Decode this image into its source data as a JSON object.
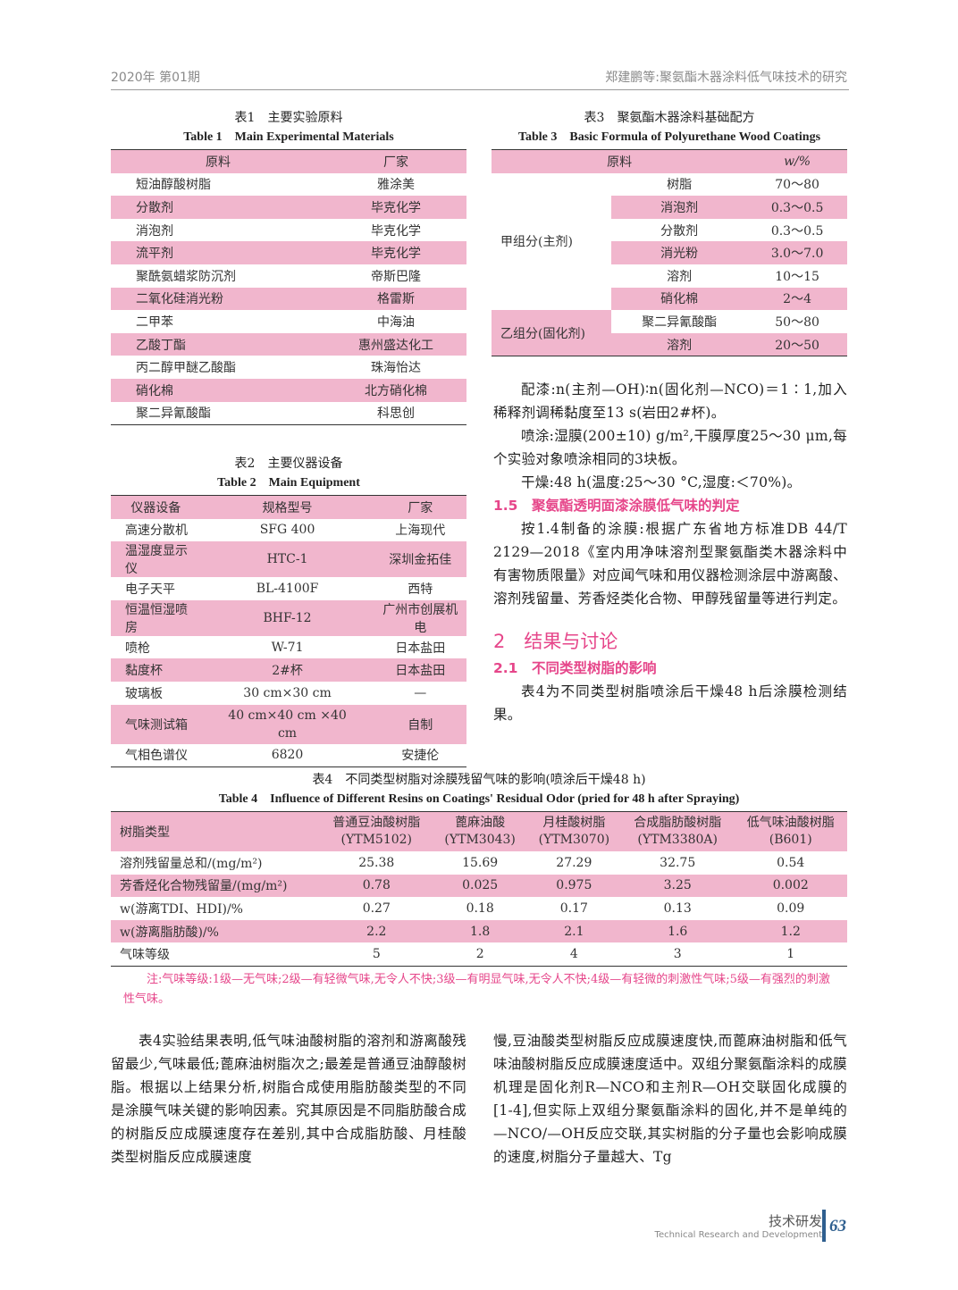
{
  "header": {
    "issue": "2020年 第01期",
    "running_title": "郑建鹏等:聚氨酯木器涂料低气味技术的研究"
  },
  "table1": {
    "caption_cn": "表1　主要实验原料",
    "caption_en": "Table 1　Main Experimental Materials",
    "columns": [
      "原料",
      "厂家"
    ],
    "rows": [
      [
        "短油醇酸树脂",
        "雅涂美"
      ],
      [
        "分散剂",
        "毕克化学"
      ],
      [
        "消泡剂",
        "毕克化学"
      ],
      [
        "流平剂",
        "毕克化学"
      ],
      [
        "聚酰氨蜡浆防沉剂",
        "帝斯巴隆"
      ],
      [
        "二氧化硅消光粉",
        "格雷斯"
      ],
      [
        "二甲苯",
        "中海油"
      ],
      [
        "乙酸丁酯",
        "惠州盛达化工"
      ],
      [
        "丙二醇甲醚乙酸酯",
        "珠海怡达"
      ],
      [
        "硝化棉",
        "北方硝化棉"
      ],
      [
        "聚二异氰酸酯",
        "科思创"
      ]
    ]
  },
  "table2": {
    "caption_cn": "表2　主要仪器设备",
    "caption_en": "Table 2　Main Equipment",
    "columns": [
      "仪器设备",
      "规格型号",
      "厂家"
    ],
    "rows": [
      [
        "高速分散机",
        "SFG 400",
        "上海现代"
      ],
      [
        "温湿度显示仪",
        "HTC-1",
        "深圳金拓佳"
      ],
      [
        "电子天平",
        "BL-4100F",
        "西特"
      ],
      [
        "恒温恒湿喷房",
        "BHF-12",
        "广州市创展机电"
      ],
      [
        "喷枪",
        "W-71",
        "日本盐田"
      ],
      [
        "黏度杯",
        "2#杯",
        "日本盐田"
      ],
      [
        "玻璃板",
        "30 cm×30 cm",
        "—"
      ],
      [
        "气味测试箱",
        "40 cm×40 cm ×40 cm",
        "自制"
      ],
      [
        "气相色谱仪",
        "6820",
        "安捷伦"
      ]
    ]
  },
  "table3": {
    "caption_cn": "表3　聚氨酯木器涂料基础配方",
    "caption_en": "Table 3　Basic Formula of Polyurethane Wood Coatings",
    "columns": [
      "原料",
      "w/%"
    ],
    "groups": [
      {
        "name": "甲组分(主剂)",
        "rows": [
          [
            "树脂",
            "70～80"
          ],
          [
            "消泡剂",
            "0.3～0.5"
          ],
          [
            "分散剂",
            "0.3～0.5"
          ],
          [
            "消光粉",
            "3.0～7.0"
          ],
          [
            "溶剂",
            "10～15"
          ],
          [
            "硝化棉",
            "2～4"
          ]
        ]
      },
      {
        "name": "乙组分(固化剂)",
        "rows": [
          [
            "聚二异氰酸酯",
            "50～80"
          ],
          [
            "溶剂",
            "20～50"
          ]
        ]
      }
    ]
  },
  "right_text": {
    "p1": "配漆:n(主剂—OH)∶n(固化剂—NCO)＝1∶1,加入稀释剂调稀黏度至13 s(岩田2#杯)。",
    "p2": "喷涂:湿膜(200±10) g/m²,干膜厚度25～30 μm,每个实验对象喷涂相同的3块板。",
    "p3": "干燥:48 h(温度:25～30 °C,湿度:＜70%)。",
    "h15": "1.5　聚氨酯透明面漆涂膜低气味的判定",
    "p4": "按1.4制备的涂膜:根据广东省地方标准DB 44/T 2129—2018《室内用净味溶剂型聚氨酯类木器涂料中有害物质限量》对应闻气味和用仪器检测涂层中游离酸、溶剂残留量、芳香烃类化合物、甲醇残留量等进行判定。",
    "h2": "2　结果与讨论",
    "h21": "2.1　不同类型树脂的影响",
    "p5": "表4为不同类型树脂喷涂后干燥48 h后涂膜检测结果。"
  },
  "table4": {
    "caption_cn": "表4　不同类型树脂对涂膜残留气味的影响(喷涂后干燥48 h)",
    "caption_en": "Table 4　Influence of Different Resins on Coatings' Residual Odor (pried for 48 h after Spraying)",
    "corner": "树脂类型",
    "columns": [
      [
        "普通豆油酸树脂",
        "(YTM5102)"
      ],
      [
        "蓖麻油酸",
        "(YTM3043)"
      ],
      [
        "月桂酸树脂",
        "(YTM3070)"
      ],
      [
        "合成脂肪酸树脂",
        "(YTM3380A)"
      ],
      [
        "低气味油酸树脂",
        "(B601)"
      ]
    ],
    "rows": [
      [
        "溶剂残留量总和/(mg/m²)",
        "25.38",
        "15.69",
        "27.29",
        "32.75",
        "0.54"
      ],
      [
        "芳香烃化合物残留量/(mg/m²)",
        "0.78",
        "0.025",
        "0.975",
        "3.25",
        "0.002"
      ],
      [
        "w(游离TDI、HDI)/%",
        "0.27",
        "0.18",
        "0.17",
        "0.13",
        "0.09"
      ],
      [
        "w(游离脂肪酸)/%",
        "2.2",
        "1.8",
        "2.1",
        "1.6",
        "1.2"
      ],
      [
        "气味等级",
        "5",
        "2",
        "4",
        "3",
        "1"
      ]
    ],
    "note": "注:气味等级:1级—无气味;2级—有轻微气味,无令人不快;3级—有明显气味,无令人不快;4级—有轻微的刺激性气味;5级—有强烈的刺激性气味。"
  },
  "body": {
    "left": "表4实验结果表明,低气味油酸树脂的溶剂和游离酸残留最少,气味最低;蓖麻油树脂次之;最差是普通豆油醇酸树脂。根据以上结果分析,树脂合成使用脂肪酸类型的不同是涂膜气味关键的影响因素。究其原因是不同脂肪酸合成的树脂反应成膜速度存在差别,其中合成脂肪酸、月桂酸类型树脂反应成膜速度",
    "right": "慢,豆油酸类型树脂反应成膜速度快,而蓖麻油树脂和低气味油酸树脂反应成膜速度适中。双组分聚氨酯涂料的成膜机理是固化剂R—NCO和主剂R—OH交联固化成膜的[1-4],但实际上双组分聚氨酯涂料的固化,并不是单纯的—NCO/—OH反应交联,其实树脂的分子量也会影响成膜的速度,树脂分子量越大、Tg"
  },
  "footer": {
    "section_cn": "技术研发",
    "section_en": "Technical Research and Development",
    "page": "63"
  },
  "colors": {
    "accent": "#e6468a",
    "row_pink": "#f1b6cd",
    "footer_blue": "#2f5f8f"
  }
}
